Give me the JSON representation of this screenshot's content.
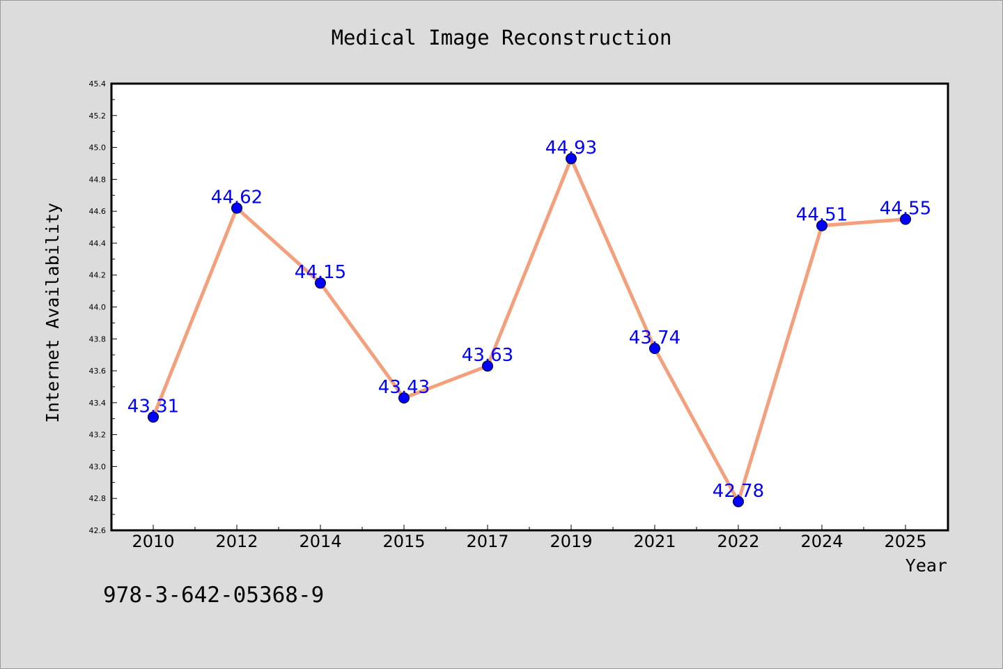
{
  "chart_data": {
    "type": "line",
    "title": "Medical Image Reconstruction",
    "xlabel": "Year",
    "ylabel": "Internet Availability",
    "categories": [
      "2010",
      "2012",
      "2014",
      "2015",
      "2017",
      "2019",
      "2021",
      "2022",
      "2024",
      "2025"
    ],
    "series": [
      {
        "values": [
          43.31,
          44.62,
          44.15,
          43.43,
          43.63,
          44.93,
          43.74,
          42.78,
          44.51,
          44.55
        ],
        "data_labels": [
          "43.31",
          "44.62",
          "44.15",
          "43.43",
          "43.63",
          "44.93",
          "43.74",
          "42.78",
          "44.51",
          "44.55"
        ],
        "line_color": "#f4a07c",
        "marker_color": "#0000ff",
        "label_color": "#0000ff"
      }
    ],
    "ylim": [
      42.6,
      45.4
    ],
    "yticks": [
      42.6,
      42.8,
      43.0,
      43.2,
      43.4,
      43.6,
      43.8,
      44.0,
      44.2,
      44.4,
      44.6,
      44.8,
      45.0,
      45.2,
      45.4
    ],
    "ytick_labels": [
      "42.6",
      "42.8",
      "43.0",
      "43.2",
      "43.4",
      "43.6",
      "43.8",
      "44.0",
      "44.2",
      "44.4",
      "44.6",
      "44.8",
      "45.0",
      "45.2",
      "45.4"
    ],
    "grid": false,
    "legend": "none"
  },
  "footnote": "978-3-642-05368-9",
  "colors": {
    "page_background": "#dcdcdc",
    "plot_background": "#ffffff"
  }
}
